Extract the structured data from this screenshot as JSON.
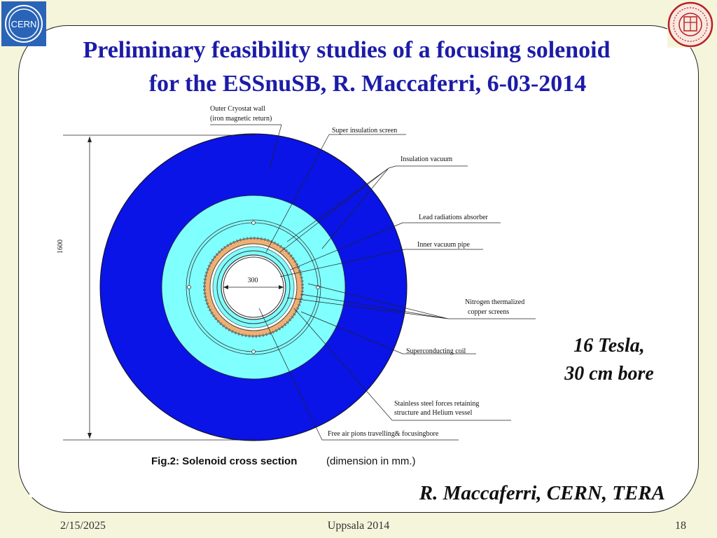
{
  "slide": {
    "title_line1": "Preliminary feasibility studies of a focusing solenoid",
    "title_line2": "for the ESSnuSB, R. Maccaferri, 6-03-2014",
    "side_note_line1": "16 Tesla,",
    "side_note_line2": "30 cm bore",
    "author": "R. Maccaferri, CERN, TERA",
    "footer_date": "2/15/2025",
    "footer_center": "Uppsala 2014",
    "footer_page": "18",
    "cern_logo_text": "CERN"
  },
  "figure": {
    "labels": {
      "outer_wall_1": "Outer Cryostat wall",
      "outer_wall_2": "(iron magnetic return)",
      "super_insulation": "Super insulation screen",
      "insulation_vacuum": "Insulation vacuum",
      "lead_absorber": "Lead radiations absorber",
      "inner_vacuum": "Inner vacuum pipe",
      "nitrogen_1": "Nitrogen thermalized",
      "nitrogen_2": "copper screens",
      "sc_coil": "Superconducting coil",
      "stainless_1": "Stainless steel forces retaining",
      "stainless_2": "structure and Helium vessel",
      "free_air": "Free air pions travelling& focusingbore"
    },
    "dim_outer": "1600",
    "dim_inner": "300",
    "caption_bold": "Fig.2: Solenoid cross section",
    "caption_rest": "(dimension in mm.)"
  },
  "colors": {
    "title": "#1c1ca8",
    "iron": "#0a14e6",
    "vacuum": "#80ffff",
    "coil": "#f0b070",
    "background": "#f5f5dc"
  }
}
